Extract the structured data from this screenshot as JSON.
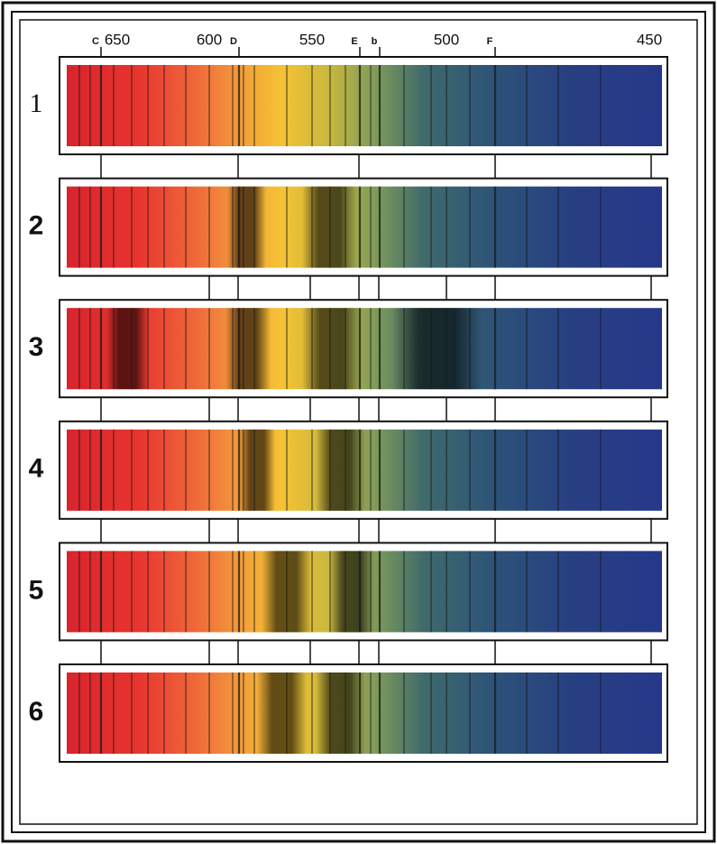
{
  "scale": {
    "wavelengths": [
      650,
      600,
      550,
      500,
      450
    ],
    "lines": [
      "C",
      "D",
      "E",
      "b",
      "F"
    ]
  },
  "rows": [
    "1",
    "2",
    "3",
    "4",
    "5",
    "6"
  ]
}
